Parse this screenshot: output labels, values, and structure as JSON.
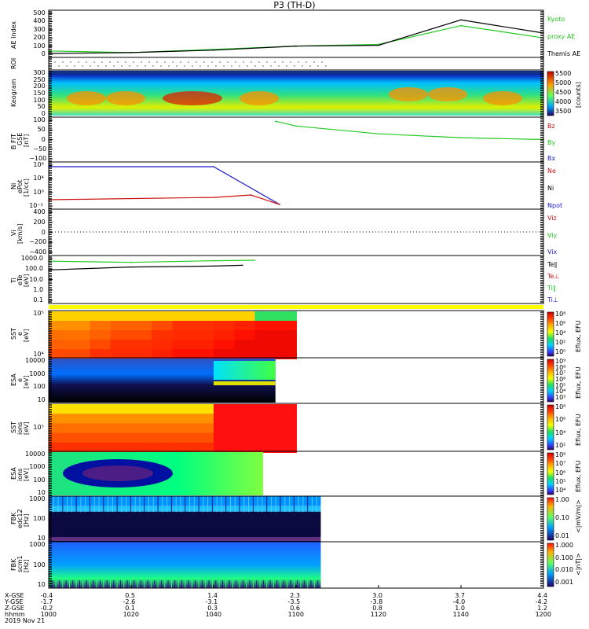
{
  "title": "P3 (TH-D)",
  "colors": {
    "green": "#22c922",
    "red": "#cc1111",
    "blue": "#1a1acc",
    "black": "#000000",
    "yellow": "#ffff00"
  },
  "panels": [
    {
      "id": "ae",
      "ylabel": [
        "AE Index"
      ],
      "yticks": [
        "500",
        "400",
        "300",
        "200",
        "100",
        "0"
      ],
      "legend": [
        {
          "text": "Kyoto",
          "color": "#22c922"
        },
        {
          "text": "proxy AE",
          "color": "#22c922"
        },
        {
          "text": "Themis AE",
          "color": "#000000"
        }
      ]
    },
    {
      "id": "roi",
      "ylabel": [
        "ROI"
      ],
      "yticks": [],
      "legend": []
    },
    {
      "id": "keogram",
      "ylabel": [
        "Keogram"
      ],
      "yticks": [
        "300",
        "250",
        "200",
        "150",
        "100",
        "50",
        "0"
      ],
      "cbar": {
        "ticks": [
          "5500",
          "5000",
          "4500",
          "4000",
          "3500"
        ],
        "label": "[counts]"
      },
      "legend": []
    },
    {
      "id": "bfit",
      "ylabel": [
        "B FIT",
        "GSE",
        "[nT]"
      ],
      "yticks": [
        "100",
        "50",
        "0",
        "−50",
        "−100"
      ],
      "legend": [
        {
          "text": "Bz",
          "color": "#cc1111"
        },
        {
          "text": "By",
          "color": "#22c922"
        },
        {
          "text": "Bx",
          "color": "#1a1acc"
        }
      ]
    },
    {
      "id": "ni",
      "ylabel": [
        "Ni",
        "ePot",
        "[1/cc]"
      ],
      "yticks": [
        "10⁶",
        "10⁴",
        "10⁰",
        "10⁻²"
      ],
      "legend": [
        {
          "text": "Ne",
          "color": "#cc1111"
        },
        {
          "text": "Ni",
          "color": "#000000"
        },
        {
          "text": "Npot",
          "color": "#1a1acc"
        }
      ]
    },
    {
      "id": "vi",
      "ylabel": [
        "Vi",
        "[km/s]"
      ],
      "yticks": [
        "400",
        "200",
        "0",
        "−200",
        "−400"
      ],
      "legend": [
        {
          "text": "Viz",
          "color": "#cc1111"
        },
        {
          "text": "Viy",
          "color": "#22c922"
        },
        {
          "text": "Vix",
          "color": "#1a1acc"
        }
      ]
    },
    {
      "id": "ti",
      "ylabel": [
        "Ti",
        "eTe",
        "[eV]"
      ],
      "yticks": [
        "1000.0",
        "100.0",
        "10.0",
        "1.0",
        "0.1"
      ],
      "legend": [
        {
          "text": "Te∥",
          "color": "#000000"
        },
        {
          "text": "Te⊥",
          "color": "#cc1111"
        },
        {
          "text": "Ti∥",
          "color": "#22c922"
        },
        {
          "text": "Ti⊥",
          "color": "#1a1acc"
        }
      ]
    },
    {
      "id": "sst_e",
      "ylabel": [
        "SST",
        "e",
        "[eV]"
      ],
      "yticks": [
        "10⁵",
        "10⁴"
      ],
      "cbar": {
        "ticks": [
          "10⁸",
          "10⁶",
          "10⁴",
          "10²",
          "10⁰"
        ],
        "label": "Eflux, EFU"
      },
      "legend": []
    },
    {
      "id": "esa_e",
      "ylabel": [
        "ESA",
        "e",
        "[eV]"
      ],
      "yticks": [
        "10000",
        "1000",
        "100",
        "10"
      ],
      "cbar": {
        "ticks": [
          "10⁹",
          "10⁸",
          "10⁷",
          "10⁶",
          "10⁵",
          "10⁴",
          "10³"
        ],
        "label": "Eflux, EFU"
      },
      "legend": []
    },
    {
      "id": "sst_i",
      "ylabel": [
        "SST",
        "ions",
        "[eV]"
      ],
      "yticks": [
        "10⁵"
      ],
      "cbar": {
        "ticks": [
          "10⁸",
          "10⁶",
          "10⁴",
          "10²"
        ],
        "label": "Eflux, EFU"
      },
      "legend": []
    },
    {
      "id": "esa_i",
      "ylabel": [
        "ESA",
        "ions",
        "[eV]"
      ],
      "yticks": [
        "10000",
        "1000",
        "100",
        "10"
      ],
      "cbar": {
        "ticks": [
          "10⁸",
          "10⁷",
          "10⁶",
          "10⁵",
          "10⁴"
        ],
        "label": "Eflux, EFU"
      },
      "legend": []
    },
    {
      "id": "fbk_e",
      "ylabel": [
        "FBK",
        "edc12",
        "[Hz]"
      ],
      "yticks": [
        "1000",
        "100",
        "10"
      ],
      "cbar": {
        "ticks": [
          "1.00",
          "0.10",
          "0.01"
        ],
        "label": "<|mV/m|>"
      },
      "legend": []
    },
    {
      "id": "fbk_b",
      "ylabel": [
        "FBK",
        "scm1",
        "[Hz]"
      ],
      "yticks": [
        "1000",
        "100",
        "10"
      ],
      "cbar": {
        "ticks": [
          "1.000",
          "0.100",
          "0.010",
          "0.001"
        ],
        "label": "<|nT|>"
      },
      "legend": []
    }
  ],
  "footer": {
    "row_labels": [
      "X-GSE",
      "Y-GSE",
      "Z-GSE",
      "hhmm",
      "2019 Nov 21"
    ],
    "columns": [
      [
        "-0.4",
        "-1.7",
        "-0.2",
        "1000"
      ],
      [
        "0.5",
        "-2.6",
        "0.1",
        "1020"
      ],
      [
        "1.4",
        "-3.1",
        "0.3",
        "1040"
      ],
      [
        "2.3",
        "-3.5",
        "0.6",
        "1100"
      ],
      [
        "3.0",
        "-3.8",
        "0.8",
        "1120"
      ],
      [
        "3.7",
        "-4.0",
        "1.0",
        "1140"
      ],
      [
        "4.4",
        "-4.2",
        "1.2",
        "1200"
      ]
    ]
  },
  "chart_data": {
    "type": "line",
    "title": "P3 (TH-D)",
    "x_units": "UT hhmm, 2019 Nov 21",
    "x_ticks": [
      "1000",
      "1020",
      "1040",
      "1100",
      "1120",
      "1140",
      "1200"
    ],
    "series": [
      {
        "name": "Kyoto proxy AE",
        "panel": "ae",
        "x": [
          "1000",
          "1020",
          "1040",
          "1100",
          "1120",
          "1140",
          "1200"
        ],
        "values": [
          40,
          20,
          60,
          100,
          120,
          350,
          200
        ]
      },
      {
        "name": "Themis AE",
        "panel": "ae",
        "x": [
          "1000",
          "1020",
          "1040",
          "1100",
          "1120",
          "1140",
          "1200"
        ],
        "values": [
          10,
          20,
          50,
          100,
          110,
          420,
          260
        ]
      },
      {
        "name": "By",
        "panel": "bfit",
        "x": [
          "1055",
          "1100",
          "1120",
          "1140",
          "1200"
        ],
        "values": [
          95,
          70,
          30,
          10,
          0
        ]
      },
      {
        "name": "Npot",
        "panel": "ni",
        "x": [
          "1000",
          "1040",
          "1056"
        ],
        "values": [
          1000000,
          1000000,
          0.01
        ]
      },
      {
        "name": "Ne",
        "panel": "ni",
        "x": [
          "1000",
          "1040",
          "1049",
          "1056"
        ],
        "values": [
          0.1,
          0.3,
          1,
          0.01
        ]
      },
      {
        "name": "Ti∥",
        "panel": "ti",
        "x": [
          "1000",
          "1020",
          "1040",
          "1050"
        ],
        "values": [
          800,
          600,
          900,
          1000
        ]
      },
      {
        "name": "Te∥",
        "panel": "ti",
        "x": [
          "1000",
          "1020",
          "1040",
          "1047"
        ],
        "values": [
          100,
          200,
          250,
          300
        ]
      }
    ]
  }
}
